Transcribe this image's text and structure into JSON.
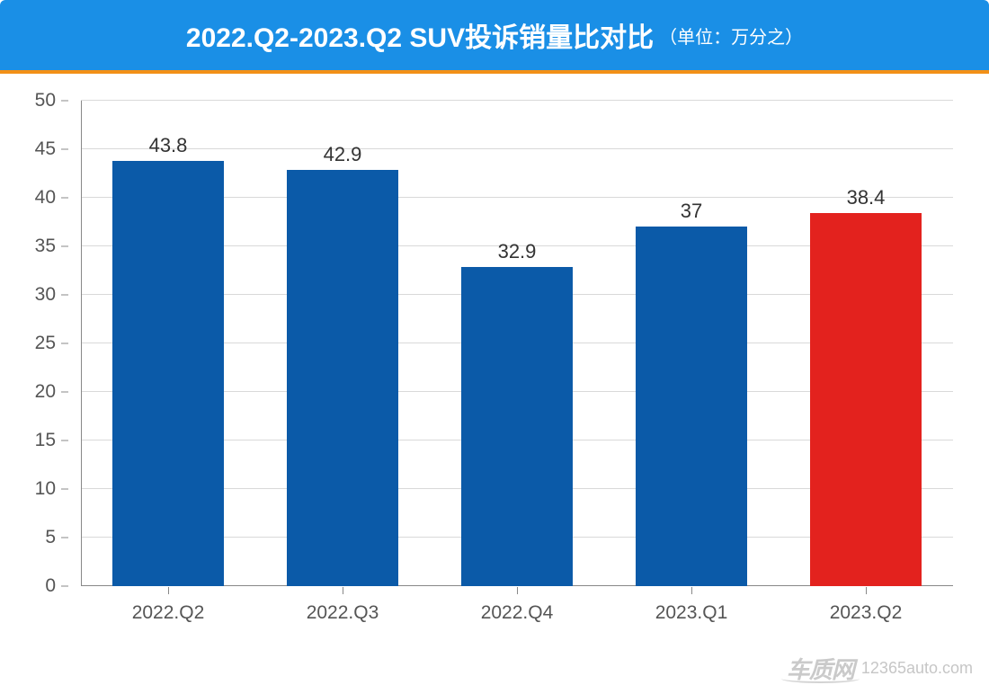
{
  "header": {
    "title": "2022.Q2-2023.Q2 SUV投诉销量比对比",
    "unit": "（单位：万分之）",
    "bg_color": "#1a8fe6",
    "title_fontsize": 30,
    "unit_fontsize": 20,
    "text_color": "#ffffff",
    "accent_color": "#f29017"
  },
  "chart": {
    "type": "bar",
    "categories": [
      "2022.Q2",
      "2022.Q3",
      "2022.Q4",
      "2023.Q1",
      "2023.Q2"
    ],
    "values": [
      43.8,
      42.9,
      32.9,
      37,
      38.4
    ],
    "value_labels": [
      "43.8",
      "42.9",
      "32.9",
      "37",
      "38.4"
    ],
    "bar_colors": [
      "#0b5aa8",
      "#0b5aa8",
      "#0b5aa8",
      "#0b5aa8",
      "#e3221e"
    ],
    "ylim": [
      0,
      50
    ],
    "ytick_step": 5,
    "yticks": [
      0,
      5,
      10,
      15,
      20,
      25,
      30,
      35,
      40,
      45,
      50
    ],
    "grid_color": "#d9d9d9",
    "axis_color": "#888888",
    "background_color": "#ffffff",
    "label_fontsize": 21,
    "value_fontsize": 22,
    "bar_width": 0.64
  },
  "watermark": {
    "logo_text": "车质网",
    "url": "12365auto.com",
    "color": "#bdbdbd"
  }
}
